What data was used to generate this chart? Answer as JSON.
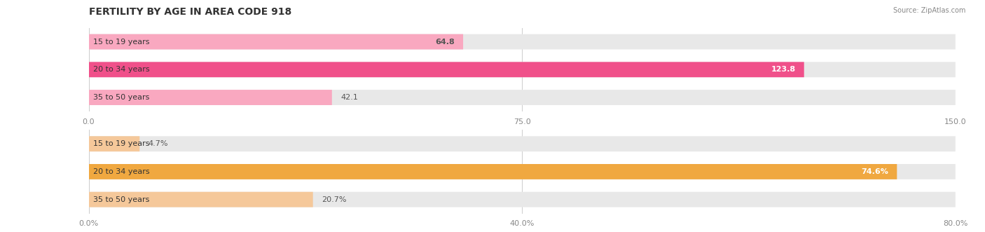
{
  "title": "FERTILITY BY AGE IN AREA CODE 918",
  "source": "Source: ZipAtlas.com",
  "top_chart": {
    "categories": [
      "15 to 19 years",
      "20 to 34 years",
      "35 to 50 years"
    ],
    "values": [
      64.8,
      123.8,
      42.1
    ],
    "xlim": [
      0,
      150
    ],
    "xticks": [
      0.0,
      75.0,
      150.0
    ],
    "bar_colors": [
      "#f9a8c0",
      "#f0508a",
      "#f9a8c0"
    ],
    "bar_bg_color": "#f0f0f0",
    "label_colors": [
      "#555555",
      "#ffffff",
      "#555555"
    ],
    "bar_height": 0.55
  },
  "bottom_chart": {
    "categories": [
      "15 to 19 years",
      "20 to 34 years",
      "35 to 50 years"
    ],
    "values": [
      4.7,
      74.6,
      20.7
    ],
    "value_labels": [
      "4.7%",
      "74.6%",
      "20.7%"
    ],
    "xlim": [
      0,
      80
    ],
    "xticks": [
      0.0,
      40.0,
      80.0
    ],
    "xticklabels": [
      "0.0%",
      "40.0%",
      "80.0%"
    ],
    "bar_colors": [
      "#f5c89a",
      "#f0a840",
      "#f5c89a"
    ],
    "bar_bg_color": "#f0f0f0",
    "label_colors": [
      "#555555",
      "#ffffff",
      "#555555"
    ],
    "bar_height": 0.55
  },
  "bg_color": "#ffffff",
  "bar_bg_color": "#e8e8e8",
  "title_fontsize": 10,
  "source_fontsize": 7,
  "label_fontsize": 8,
  "tick_fontsize": 8,
  "cat_fontsize": 8
}
